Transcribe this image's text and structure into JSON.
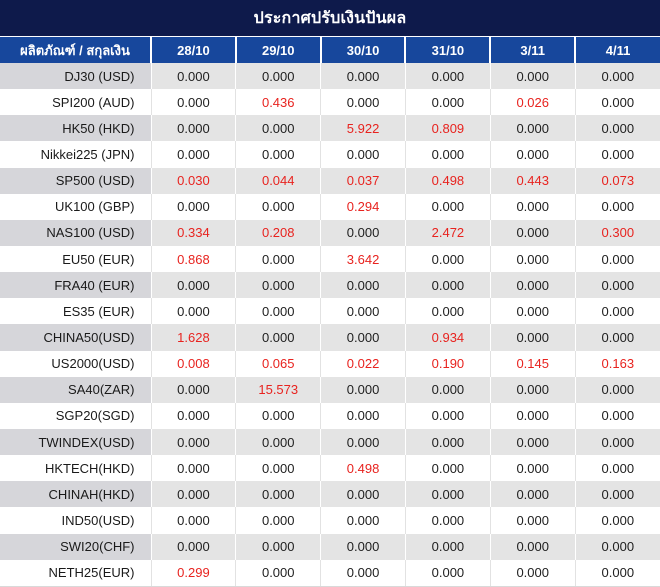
{
  "title": "ประกาศปรับเงินปันผล",
  "colors": {
    "title_bg": "#0e1a4b",
    "header_bg": "#17479c",
    "header_text": "#ffffff",
    "row_stripe_values": "#e4e4e4",
    "row_stripe_product": "#d6d6da",
    "row_white": "#ffffff",
    "value_black": "#212121",
    "value_red": "#e8231f",
    "bottom_border": "#d9d9d9"
  },
  "table": {
    "product_header": "ผลิตภัณฑ์ / สกุลเงิน",
    "date_columns": [
      "28/10",
      "29/10",
      "30/10",
      "31/10",
      "3/11",
      "4/11"
    ],
    "rows": [
      {
        "product": "DJ30 (USD)",
        "values": [
          "0.000",
          "0.000",
          "0.000",
          "0.000",
          "0.000",
          "0.000"
        ],
        "red": [
          false,
          false,
          false,
          false,
          false,
          false
        ]
      },
      {
        "product": "SPI200 (AUD)",
        "values": [
          "0.000",
          "0.436",
          "0.000",
          "0.000",
          "0.026",
          "0.000"
        ],
        "red": [
          false,
          true,
          false,
          false,
          true,
          false
        ]
      },
      {
        "product": "HK50 (HKD)",
        "values": [
          "0.000",
          "0.000",
          "5.922",
          "0.809",
          "0.000",
          "0.000"
        ],
        "red": [
          false,
          false,
          true,
          true,
          false,
          false
        ]
      },
      {
        "product": "Nikkei225 (JPN)",
        "values": [
          "0.000",
          "0.000",
          "0.000",
          "0.000",
          "0.000",
          "0.000"
        ],
        "red": [
          false,
          false,
          false,
          false,
          false,
          false
        ]
      },
      {
        "product": "SP500 (USD)",
        "values": [
          "0.030",
          "0.044",
          "0.037",
          "0.498",
          "0.443",
          "0.073"
        ],
        "red": [
          true,
          true,
          true,
          true,
          true,
          true
        ]
      },
      {
        "product": "UK100 (GBP)",
        "values": [
          "0.000",
          "0.000",
          "0.294",
          "0.000",
          "0.000",
          "0.000"
        ],
        "red": [
          false,
          false,
          true,
          false,
          false,
          false
        ]
      },
      {
        "product": "NAS100 (USD)",
        "values": [
          "0.334",
          "0.208",
          "0.000",
          "2.472",
          "0.000",
          "0.300"
        ],
        "red": [
          true,
          true,
          false,
          true,
          false,
          true
        ]
      },
      {
        "product": "EU50 (EUR)",
        "values": [
          "0.868",
          "0.000",
          "3.642",
          "0.000",
          "0.000",
          "0.000"
        ],
        "red": [
          true,
          false,
          true,
          false,
          false,
          false
        ]
      },
      {
        "product": "FRA40 (EUR)",
        "values": [
          "0.000",
          "0.000",
          "0.000",
          "0.000",
          "0.000",
          "0.000"
        ],
        "red": [
          false,
          false,
          false,
          false,
          false,
          false
        ]
      },
      {
        "product": "ES35 (EUR)",
        "values": [
          "0.000",
          "0.000",
          "0.000",
          "0.000",
          "0.000",
          "0.000"
        ],
        "red": [
          false,
          false,
          false,
          false,
          false,
          false
        ]
      },
      {
        "product": "CHINA50(USD)",
        "values": [
          "1.628",
          "0.000",
          "0.000",
          "0.934",
          "0.000",
          "0.000"
        ],
        "red": [
          true,
          false,
          false,
          true,
          false,
          false
        ]
      },
      {
        "product": "US2000(USD)",
        "values": [
          "0.008",
          "0.065",
          "0.022",
          "0.190",
          "0.145",
          "0.163"
        ],
        "red": [
          true,
          true,
          true,
          true,
          true,
          true
        ]
      },
      {
        "product": "SA40(ZAR)",
        "values": [
          "0.000",
          "15.573",
          "0.000",
          "0.000",
          "0.000",
          "0.000"
        ],
        "red": [
          false,
          true,
          false,
          false,
          false,
          false
        ]
      },
      {
        "product": "SGP20(SGD)",
        "values": [
          "0.000",
          "0.000",
          "0.000",
          "0.000",
          "0.000",
          "0.000"
        ],
        "red": [
          false,
          false,
          false,
          false,
          false,
          false
        ]
      },
      {
        "product": "TWINDEX(USD)",
        "values": [
          "0.000",
          "0.000",
          "0.000",
          "0.000",
          "0.000",
          "0.000"
        ],
        "red": [
          false,
          false,
          false,
          false,
          false,
          false
        ]
      },
      {
        "product": "HKTECH(HKD)",
        "values": [
          "0.000",
          "0.000",
          "0.498",
          "0.000",
          "0.000",
          "0.000"
        ],
        "red": [
          false,
          false,
          true,
          false,
          false,
          false
        ]
      },
      {
        "product": "CHINAH(HKD)",
        "values": [
          "0.000",
          "0.000",
          "0.000",
          "0.000",
          "0.000",
          "0.000"
        ],
        "red": [
          false,
          false,
          false,
          false,
          false,
          false
        ]
      },
      {
        "product": "IND50(USD)",
        "values": [
          "0.000",
          "0.000",
          "0.000",
          "0.000",
          "0.000",
          "0.000"
        ],
        "red": [
          false,
          false,
          false,
          false,
          false,
          false
        ]
      },
      {
        "product": "SWI20(CHF)",
        "values": [
          "0.000",
          "0.000",
          "0.000",
          "0.000",
          "0.000",
          "0.000"
        ],
        "red": [
          false,
          false,
          false,
          false,
          false,
          false
        ]
      },
      {
        "product": "NETH25(EUR)",
        "values": [
          "0.299",
          "0.000",
          "0.000",
          "0.000",
          "0.000",
          "0.000"
        ],
        "red": [
          true,
          false,
          false,
          false,
          false,
          false
        ]
      }
    ]
  }
}
